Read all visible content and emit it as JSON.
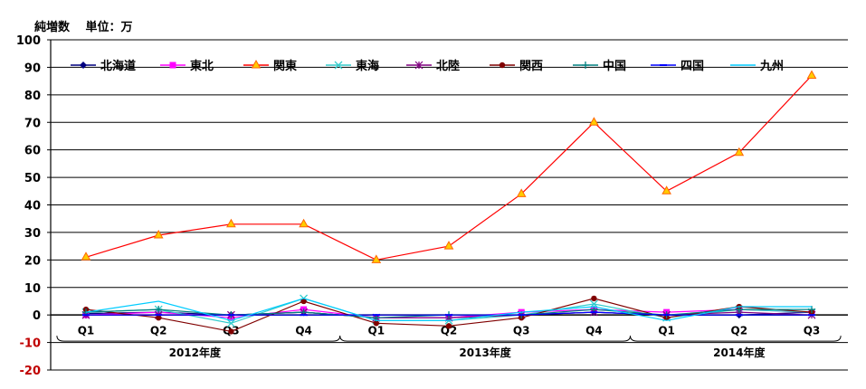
{
  "chart_data": {
    "type": "line",
    "title": "",
    "unit_label": "純増数　 単位：万",
    "ylim": [
      -20,
      100
    ],
    "yticks": [
      100,
      90,
      80,
      70,
      60,
      50,
      40,
      30,
      20,
      10,
      0,
      -10,
      -20
    ],
    "grid": true,
    "legend_position": "top",
    "categories": [
      "Q1",
      "Q2",
      "Q3",
      "Q4",
      "Q1",
      "Q2",
      "Q3",
      "Q4",
      "Q1",
      "Q2",
      "Q3"
    ],
    "year_groups": [
      {
        "label": "2012年度",
        "start": 0,
        "end": 3
      },
      {
        "label": "2013年度",
        "start": 4,
        "end": 7
      },
      {
        "label": "2014年度",
        "start": 8,
        "end": 10
      }
    ],
    "series": [
      {
        "name": "北海道",
        "color": "#000080",
        "marker": "diamond",
        "values": [
          0.5,
          1,
          0,
          1,
          -1,
          -1,
          0,
          1,
          0,
          0,
          1
        ]
      },
      {
        "name": "東北",
        "color": "#ff00ff",
        "marker": "square",
        "values": [
          0,
          1,
          -1,
          2,
          -1,
          -1,
          1,
          2,
          1,
          2,
          1
        ]
      },
      {
        "name": "関東",
        "color": "#ff0000",
        "marker": "triangle",
        "values": [
          21,
          29,
          33,
          33,
          20,
          25,
          44,
          70,
          45,
          59,
          87
        ]
      },
      {
        "name": "東海",
        "color": "#33cccc",
        "marker": "x",
        "values": [
          1,
          2,
          -3,
          6,
          -2,
          -2,
          0,
          4,
          -1,
          2,
          1
        ]
      },
      {
        "name": "北陸",
        "color": "#800080",
        "marker": "star",
        "values": [
          0,
          0,
          0,
          1,
          -1,
          -1,
          0,
          1,
          0,
          1,
          0
        ]
      },
      {
        "name": "関西",
        "color": "#800000",
        "marker": "circle",
        "values": [
          2,
          -1,
          -6,
          5,
          -3,
          -4,
          -1,
          6,
          -1,
          3,
          1
        ]
      },
      {
        "name": "中国",
        "color": "#008080",
        "marker": "plus",
        "values": [
          1,
          2,
          0,
          1,
          -1,
          0,
          0,
          2,
          0,
          2,
          2
        ]
      },
      {
        "name": "四国",
        "color": "#0000ff",
        "marker": "dash",
        "values": [
          0,
          0,
          0,
          0,
          0,
          0,
          0,
          1,
          0,
          0,
          0
        ]
      },
      {
        "name": "九州",
        "color": "#00ccff",
        "marker": "line",
        "values": [
          1,
          5,
          -2,
          6,
          -2,
          -2,
          1,
          3,
          -2,
          3,
          3
        ]
      }
    ]
  }
}
